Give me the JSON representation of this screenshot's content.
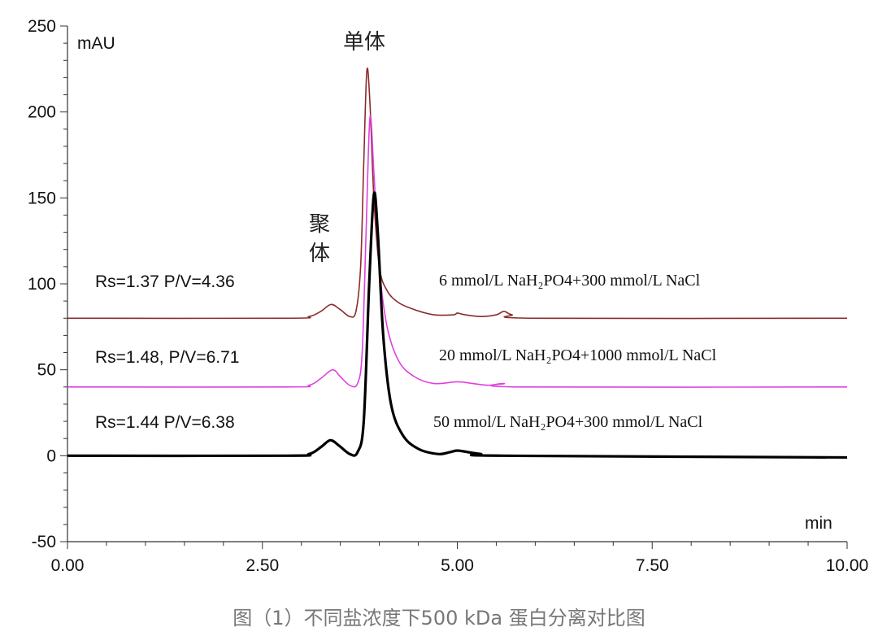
{
  "chart_data": {
    "type": "line",
    "title": "",
    "ylabel": "mAU",
    "xlabel": "min",
    "xlim": [
      0,
      10
    ],
    "ylim": [
      -50,
      250
    ],
    "x_ticks": [
      "0.00",
      "2.50",
      "5.00",
      "7.50",
      "10.00"
    ],
    "x_tick_values": [
      0,
      2.5,
      5,
      7.5,
      10
    ],
    "y_ticks": [
      "-50",
      "0",
      "50",
      "100",
      "150",
      "200",
      "250"
    ],
    "y_tick_values": [
      -50,
      0,
      50,
      100,
      150,
      200,
      250
    ],
    "annotations": {
      "monomer": "单体",
      "aggregate_line1": "聚",
      "aggregate_line2": "体"
    },
    "series": [
      {
        "color": "#8b2b2b",
        "stroke_width": 1.6,
        "rs_text": "Rs=1.37 P/V=4.36",
        "condition_text": "6 mmol/L NaH₂PO4+300 mmol/L NaCl",
        "points": [
          [
            0,
            80
          ],
          [
            2.8,
            80
          ],
          [
            3.1,
            81
          ],
          [
            3.25,
            84
          ],
          [
            3.38,
            88
          ],
          [
            3.5,
            85
          ],
          [
            3.62,
            81
          ],
          [
            3.7,
            84
          ],
          [
            3.76,
            110
          ],
          [
            3.8,
            170
          ],
          [
            3.84,
            224
          ],
          [
            3.88,
            205
          ],
          [
            3.93,
            150
          ],
          [
            4.0,
            110
          ],
          [
            4.1,
            96
          ],
          [
            4.25,
            89
          ],
          [
            4.45,
            85
          ],
          [
            4.7,
            82
          ],
          [
            4.95,
            82
          ],
          [
            5.0,
            83
          ],
          [
            5.1,
            82
          ],
          [
            5.3,
            81
          ],
          [
            5.5,
            82
          ],
          [
            5.6,
            84
          ],
          [
            5.7,
            82
          ],
          [
            6.0,
            80
          ],
          [
            10.0,
            80
          ]
        ]
      },
      {
        "color": "#e040e0",
        "stroke_width": 1.6,
        "rs_text": "Rs=1.48, P/V=6.71",
        "condition_text": "20 mmol/L NaH₂PO4+1000 mmol/L NaCl",
        "points": [
          [
            0,
            40
          ],
          [
            2.8,
            40
          ],
          [
            3.1,
            41
          ],
          [
            3.25,
            45
          ],
          [
            3.4,
            50
          ],
          [
            3.5,
            46
          ],
          [
            3.62,
            41
          ],
          [
            3.72,
            42
          ],
          [
            3.78,
            60
          ],
          [
            3.83,
            130
          ],
          [
            3.88,
            197
          ],
          [
            3.93,
            165
          ],
          [
            4.0,
            110
          ],
          [
            4.1,
            75
          ],
          [
            4.25,
            55
          ],
          [
            4.45,
            46
          ],
          [
            4.7,
            42
          ],
          [
            5.0,
            43
          ],
          [
            5.2,
            42
          ],
          [
            5.4,
            41
          ],
          [
            5.6,
            42
          ],
          [
            5.8,
            40
          ],
          [
            10.0,
            40
          ]
        ]
      },
      {
        "color": "#000000",
        "stroke_width": 3.2,
        "rs_text": "Rs=1.44  P/V=6.38",
        "condition_text": "50 mmol/L NaH₂PO4+300 mmol/L NaCl",
        "points": [
          [
            0,
            0
          ],
          [
            2.8,
            0
          ],
          [
            3.1,
            1
          ],
          [
            3.25,
            5
          ],
          [
            3.37,
            9
          ],
          [
            3.48,
            6
          ],
          [
            3.62,
            1
          ],
          [
            3.72,
            2
          ],
          [
            3.8,
            20
          ],
          [
            3.87,
            100
          ],
          [
            3.93,
            152
          ],
          [
            3.98,
            130
          ],
          [
            4.05,
            70
          ],
          [
            4.15,
            30
          ],
          [
            4.3,
            12
          ],
          [
            4.5,
            4
          ],
          [
            4.75,
            1
          ],
          [
            4.9,
            2
          ],
          [
            5.0,
            3
          ],
          [
            5.15,
            2
          ],
          [
            5.3,
            1
          ],
          [
            5.6,
            0
          ],
          [
            10.0,
            -1
          ]
        ]
      }
    ]
  },
  "caption": "图（1）不同盐浓度下500 kDa 蛋白分离对比图"
}
